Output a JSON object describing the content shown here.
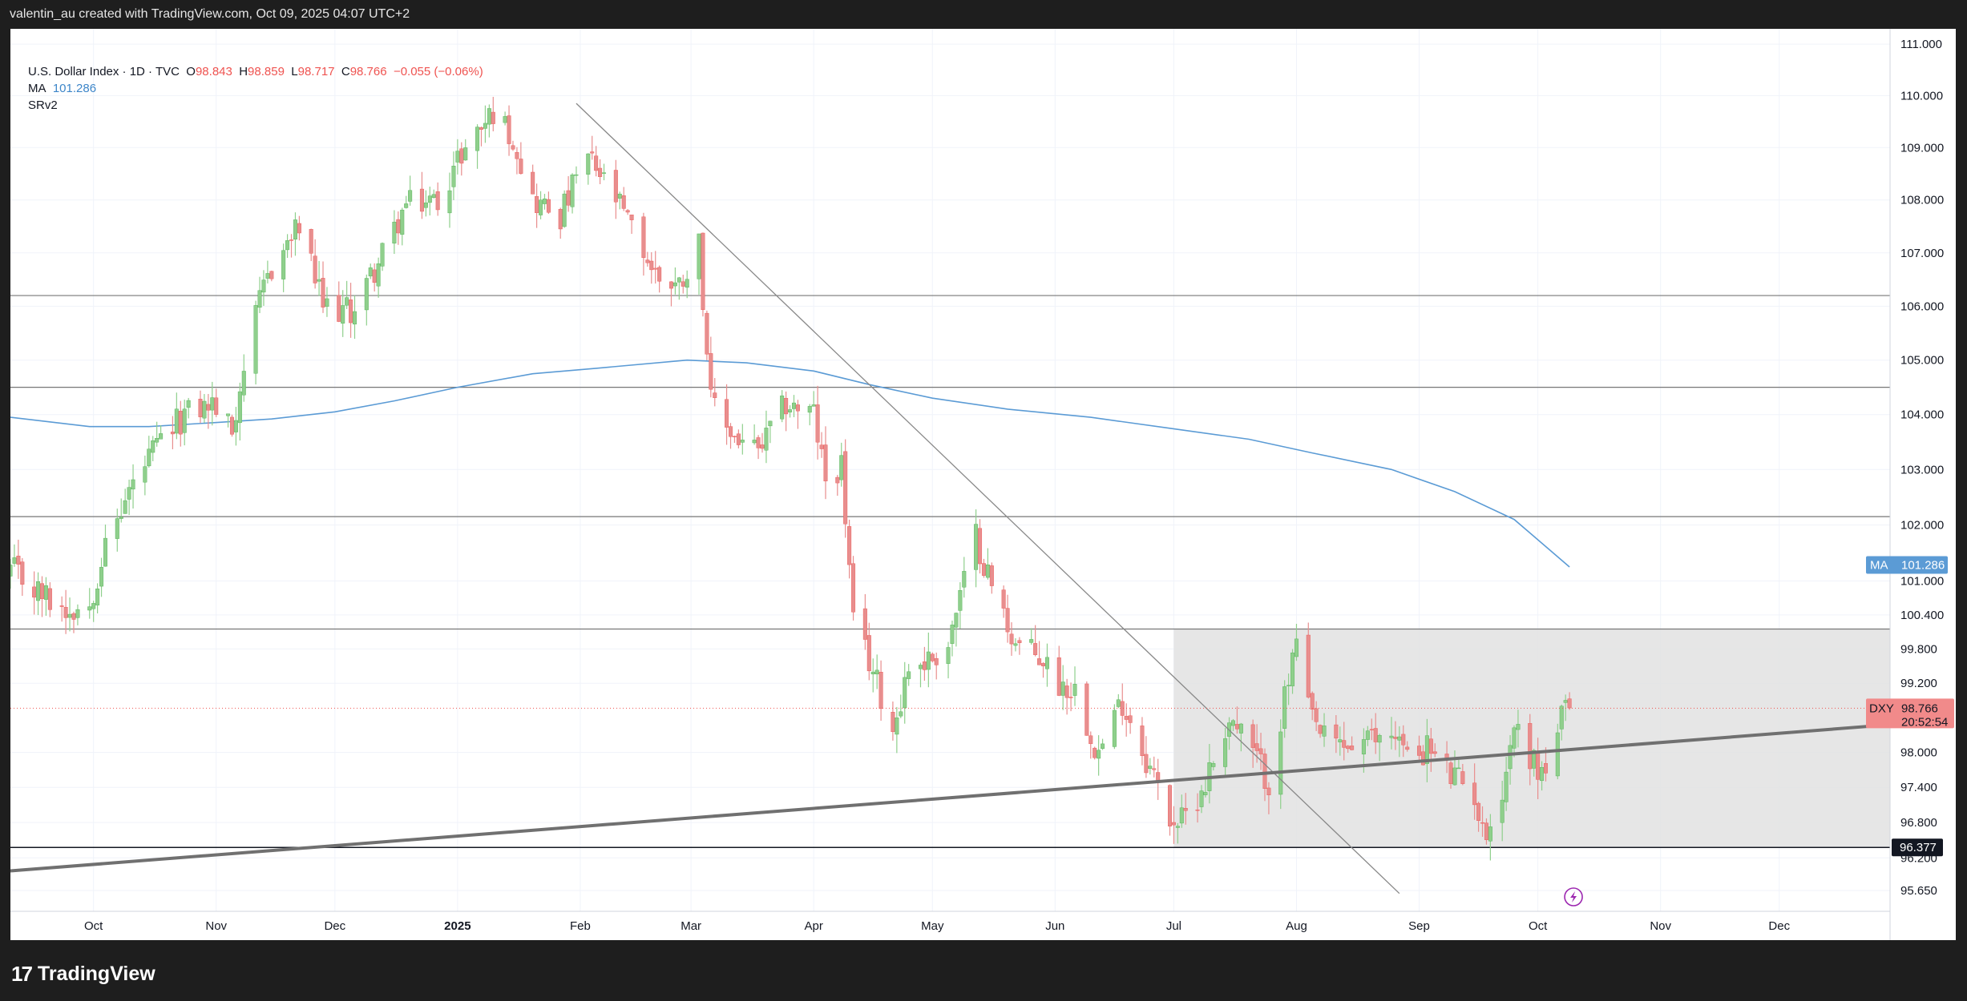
{
  "header": {
    "text": "valentin_au created with TradingView.com, Oct 09, 2025 04:07 UTC+2"
  },
  "legend": {
    "symbol": "U.S. Dollar Index · 1D · TVC",
    "o_label": "O",
    "o_value": "98.843",
    "h_label": "H",
    "h_value": "98.859",
    "l_label": "L",
    "l_value": "98.717",
    "c_label": "C",
    "c_value": "98.766",
    "change": "−0.055 (−0.06%)",
    "ma_label": "MA",
    "ma_value": "101.286",
    "srv2_label": "SRv2"
  },
  "footer": {
    "brand": "TradingView",
    "logo_glyph": "17"
  },
  "colors": {
    "up": "#4caf50",
    "down": "#ef5350",
    "up_soft": "#8fcf8c",
    "down_soft": "#e88e8e",
    "ma": "#5b9bd5",
    "trend": "#707070",
    "zone": "#e2e2e2"
  },
  "chart_data": {
    "type": "candlestick",
    "symbol": "DXY",
    "timeframe": "1D",
    "x_ticks": [
      {
        "label": "Oct",
        "date": "2024-10-01"
      },
      {
        "label": "Nov",
        "date": "2024-11-01"
      },
      {
        "label": "Dec",
        "date": "2024-12-01"
      },
      {
        "label": "2025",
        "date": "2025-01-01"
      },
      {
        "label": "Feb",
        "date": "2025-02-01"
      },
      {
        "label": "Mar",
        "date": "2025-03-01"
      },
      {
        "label": "Apr",
        "date": "2025-04-01"
      },
      {
        "label": "May",
        "date": "2025-05-01"
      },
      {
        "label": "Jun",
        "date": "2025-06-01"
      },
      {
        "label": "Jul",
        "date": "2025-07-01"
      },
      {
        "label": "Aug",
        "date": "2025-08-01"
      },
      {
        "label": "Sep",
        "date": "2025-09-01"
      },
      {
        "label": "Oct",
        "date": "2025-10-01"
      },
      {
        "label": "Nov",
        "date": "2025-11-01"
      },
      {
        "label": "Dec",
        "date": "2025-12-01"
      }
    ],
    "y_ticks": [
      "111.000",
      "110.000",
      "109.000",
      "108.000",
      "107.000",
      "106.000",
      "105.000",
      "104.000",
      "103.000",
      "102.000",
      "101.000",
      "100.400",
      "99.800",
      "99.200",
      "98.000",
      "97.400",
      "96.800",
      "96.200",
      "95.650"
    ],
    "x_range": [
      "2024-09-10",
      "2025-12-29"
    ],
    "y_range": [
      95.3,
      111.3
    ],
    "y_scale": "log",
    "horizontal_levels": [
      106.2,
      104.5,
      102.15,
      100.15,
      96.377
    ],
    "zone": {
      "start": "2025-07-01",
      "end": "2025-12-29",
      "low": 96.377,
      "high": 100.15
    },
    "trendlines": [
      {
        "name": "resistance",
        "from": {
          "date": "2025-01-31",
          "price": 109.85
        },
        "to": {
          "date": "2025-08-27",
          "price": 95.6
        }
      },
      {
        "name": "support",
        "from": {
          "date": "2024-09-10",
          "price": 95.98
        },
        "to": {
          "date": "2025-12-29",
          "price": 98.48
        }
      }
    ],
    "ma": {
      "label": "MA",
      "value": "101.286",
      "points": [
        [
          "2024-09-10",
          103.95
        ],
        [
          "2024-09-30",
          103.78
        ],
        [
          "2024-10-15",
          103.78
        ],
        [
          "2024-10-31",
          103.85
        ],
        [
          "2024-11-15",
          103.92
        ],
        [
          "2024-12-01",
          104.05
        ],
        [
          "2024-12-16",
          104.25
        ],
        [
          "2025-01-01",
          104.5
        ],
        [
          "2025-01-20",
          104.75
        ],
        [
          "2025-02-05",
          104.85
        ],
        [
          "2025-02-28",
          105.0
        ],
        [
          "2025-03-15",
          104.95
        ],
        [
          "2025-04-01",
          104.8
        ],
        [
          "2025-04-15",
          104.55
        ],
        [
          "2025-05-01",
          104.3
        ],
        [
          "2025-05-20",
          104.1
        ],
        [
          "2025-06-10",
          103.95
        ],
        [
          "2025-06-30",
          103.75
        ],
        [
          "2025-07-20",
          103.55
        ],
        [
          "2025-08-05",
          103.3
        ],
        [
          "2025-08-25",
          103.0
        ],
        [
          "2025-09-10",
          102.6
        ],
        [
          "2025-09-25",
          102.1
        ],
        [
          "2025-10-09",
          101.25
        ]
      ]
    },
    "price_tags": [
      {
        "symbol": "DXY",
        "value": "98.766",
        "countdown": "20:52:54"
      },
      {
        "label": "MA",
        "value": "101.286"
      },
      {
        "value": "96.377"
      }
    ],
    "anchors": [
      [
        "2024-09-10",
        101.2
      ],
      [
        "2024-09-17",
        100.8
      ],
      [
        "2024-09-24",
        100.5
      ],
      [
        "2024-09-30",
        100.6
      ],
      [
        "2024-10-03",
        101.4
      ],
      [
        "2024-10-10",
        102.6
      ],
      [
        "2024-10-17",
        103.4
      ],
      [
        "2024-10-24",
        104.0
      ],
      [
        "2024-10-31",
        104.2
      ],
      [
        "2024-11-05",
        103.7
      ],
      [
        "2024-11-08",
        104.9
      ],
      [
        "2024-11-14",
        106.6
      ],
      [
        "2024-11-22",
        107.5
      ],
      [
        "2024-11-28",
        106.0
      ],
      [
        "2024-12-05",
        105.9
      ],
      [
        "2024-12-12",
        106.8
      ],
      [
        "2024-12-19",
        107.9
      ],
      [
        "2024-12-27",
        108.0
      ],
      [
        "2025-01-02",
        108.9
      ],
      [
        "2025-01-10",
        109.7
      ],
      [
        "2025-01-15",
        109.2
      ],
      [
        "2025-01-20",
        108.0
      ],
      [
        "2025-01-27",
        107.7
      ],
      [
        "2025-01-31",
        108.4
      ],
      [
        "2025-02-03",
        108.8
      ],
      [
        "2025-02-10",
        108.0
      ],
      [
        "2025-02-20",
        106.6
      ],
      [
        "2025-02-26",
        106.4
      ],
      [
        "2025-03-03",
        107.2
      ],
      [
        "2025-03-06",
        104.2
      ],
      [
        "2025-03-12",
        103.6
      ],
      [
        "2025-03-18",
        103.3
      ],
      [
        "2025-03-25",
        104.2
      ],
      [
        "2025-04-01",
        104.0
      ],
      [
        "2025-04-04",
        102.8
      ],
      [
        "2025-04-08",
        103.1
      ],
      [
        "2025-04-11",
        100.2
      ],
      [
        "2025-04-15",
        99.6
      ],
      [
        "2025-04-21",
        98.4
      ],
      [
        "2025-04-25",
        99.5
      ],
      [
        "2025-04-30",
        99.6
      ],
      [
        "2025-05-05",
        99.9
      ],
      [
        "2025-05-12",
        101.8
      ],
      [
        "2025-05-16",
        100.9
      ],
      [
        "2025-05-22",
        99.9
      ],
      [
        "2025-05-29",
        99.6
      ],
      [
        "2025-06-02",
        99.2
      ],
      [
        "2025-06-06",
        99.1
      ],
      [
        "2025-06-12",
        98.0
      ],
      [
        "2025-06-18",
        98.9
      ],
      [
        "2025-06-24",
        97.9
      ],
      [
        "2025-06-30",
        96.9
      ],
      [
        "2025-07-03",
        96.8
      ],
      [
        "2025-07-09",
        97.5
      ],
      [
        "2025-07-15",
        98.6
      ],
      [
        "2025-07-21",
        98.0
      ],
      [
        "2025-07-25",
        97.5
      ],
      [
        "2025-07-29",
        98.9
      ],
      [
        "2025-08-01",
        99.9
      ],
      [
        "2025-08-04",
        98.7
      ],
      [
        "2025-08-08",
        98.2
      ],
      [
        "2025-08-14",
        98.1
      ],
      [
        "2025-08-20",
        98.2
      ],
      [
        "2025-08-26",
        98.4
      ],
      [
        "2025-08-29",
        97.9
      ],
      [
        "2025-09-03",
        98.1
      ],
      [
        "2025-09-09",
        97.6
      ],
      [
        "2025-09-15",
        97.3
      ],
      [
        "2025-09-17",
        96.6
      ],
      [
        "2025-09-22",
        97.3
      ],
      [
        "2025-09-25",
        98.5
      ],
      [
        "2025-10-01",
        97.7
      ],
      [
        "2025-10-03",
        97.7
      ],
      [
        "2025-10-07",
        98.6
      ],
      [
        "2025-10-09",
        98.77
      ]
    ]
  }
}
